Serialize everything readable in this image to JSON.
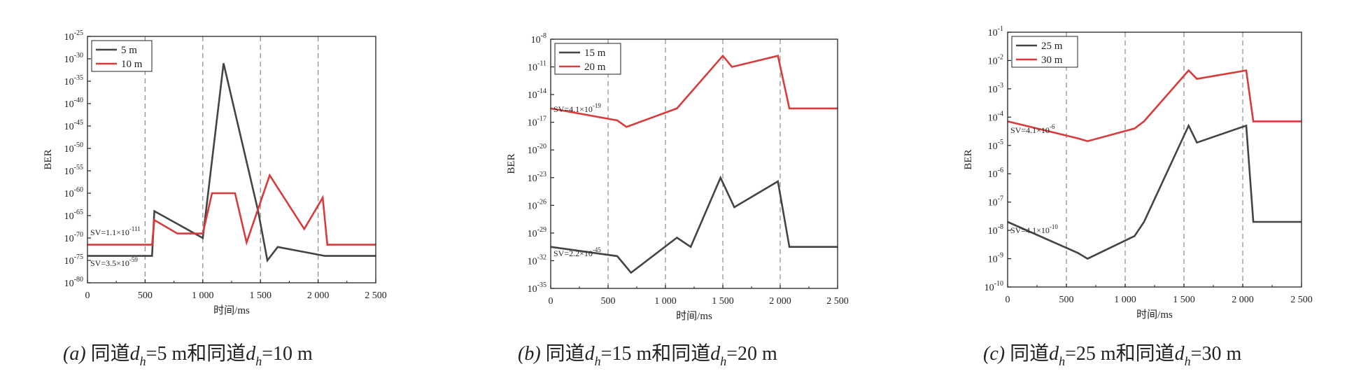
{
  "colors": {
    "black_series": "#444444",
    "red_series": "#d93a3a",
    "vline": "#888888"
  },
  "chart_data": [
    {
      "type": "line",
      "xlabel": "时间/ms",
      "ylabel": "BER",
      "xlim": [
        0,
        2500
      ],
      "x_ticks": [
        "0",
        "500",
        "1 000",
        "1 500",
        "2 000",
        "2 500"
      ],
      "y_log": true,
      "ylim_exp": [
        -80,
        -25
      ],
      "y_tick_exps": [
        "-25",
        "-30",
        "-35",
        "-40",
        "-45",
        "-50",
        "-55",
        "-60",
        "-65",
        "-70",
        "-75",
        "-80"
      ],
      "vlines": [
        500,
        1000,
        1500,
        2000
      ],
      "legend_placement": "top-left",
      "series": [
        {
          "name": "5 m",
          "color": "#444444",
          "x": [
            0,
            560,
            580,
            1000,
            1180,
            1480,
            1560,
            1650,
            2060,
            2500
          ],
          "y_exp": [
            -74,
            -74,
            -64,
            -70,
            -31,
            -64,
            -75,
            -72,
            -74,
            -74
          ]
        },
        {
          "name": "10 m",
          "color": "#d93a3a",
          "x": [
            0,
            560,
            580,
            780,
            1000,
            1080,
            1280,
            1380,
            1580,
            1880,
            2040,
            2080,
            2500
          ],
          "y_exp": [
            -71.5,
            -71.5,
            -66,
            -69,
            -69,
            -60,
            -60,
            -71,
            -56,
            -68,
            -61,
            -71.5,
            -71.5
          ]
        }
      ],
      "annotations": [
        {
          "base": "SV=1.1×10",
          "exp": "-111"
        },
        {
          "base": "SV=3.5×10",
          "exp": "-59"
        }
      ],
      "caption": {
        "letter": "(a)",
        "text1": "同道",
        "sym1": "d",
        "sub1": "h",
        "text2": "=5 m和同道",
        "sym2": "d",
        "sub2": "h",
        "text3": "=10 m"
      }
    },
    {
      "type": "line",
      "xlabel": "时间/ms",
      "ylabel": "BER",
      "xlim": [
        0,
        2500
      ],
      "x_ticks": [
        "0",
        "500",
        "1 000",
        "1 500",
        "2 000",
        "2 500"
      ],
      "y_log": true,
      "ylim_exp": [
        -35,
        -8
      ],
      "y_tick_exps": [
        "-8",
        "-11",
        "-14",
        "-17",
        "-20",
        "-23",
        "-26",
        "-29",
        "-32",
        "-35"
      ],
      "vlines": [
        500,
        1000,
        1500,
        2000
      ],
      "legend_placement": "top-left",
      "series": [
        {
          "name": "15 m",
          "color": "#444444",
          "x": [
            0,
            580,
            700,
            1100,
            1220,
            1480,
            1600,
            1980,
            2080,
            2500
          ],
          "y_exp": [
            -30.5,
            -31.5,
            -33.3,
            -29.5,
            -30.5,
            -23,
            -26.2,
            -23.4,
            -30.5,
            -30.5
          ]
        },
        {
          "name": "20 m",
          "color": "#d93a3a",
          "x": [
            0,
            580,
            660,
            1100,
            1500,
            1580,
            1980,
            2080,
            2500
          ],
          "y_exp": [
            -15.5,
            -16.8,
            -17.5,
            -15.5,
            -9.8,
            -11,
            -9.8,
            -15.5,
            -15.5
          ]
        }
      ],
      "annotations": [
        {
          "base": "SV=4.1×10",
          "exp": "-19"
        },
        {
          "base": "SV=2.2×10",
          "exp": "-45"
        }
      ],
      "caption": {
        "letter": "(b)",
        "text1": "同道",
        "sym1": "d",
        "sub1": "h",
        "text2": "=15 m和同道",
        "sym2": "d",
        "sub2": "h",
        "text3": "=20 m"
      }
    },
    {
      "type": "line",
      "xlabel": "时间/ms",
      "ylabel": "BER",
      "xlim": [
        0,
        2500
      ],
      "x_ticks": [
        "0",
        "500",
        "1 000",
        "1 500",
        "2 000",
        "2 500"
      ],
      "y_log": true,
      "ylim_exp": [
        -10,
        -1
      ],
      "y_tick_exps": [
        "-1",
        "-2",
        "-3",
        "-4",
        "-5",
        "-6",
        "-7",
        "-8",
        "-9",
        "-10"
      ],
      "vlines": [
        500,
        1000,
        1500,
        2000
      ],
      "legend_placement": "top-left",
      "series": [
        {
          "name": "25 m",
          "color": "#444444",
          "x": [
            0,
            600,
            680,
            1080,
            1160,
            1540,
            1610,
            2030,
            2090,
            2500
          ],
          "y_exp": [
            -7.7,
            -8.8,
            -9,
            -8.2,
            -7.7,
            -4.3,
            -4.9,
            -4.3,
            -7.7,
            -7.7
          ]
        },
        {
          "name": "30 m",
          "color": "#d93a3a",
          "x": [
            0,
            600,
            680,
            1080,
            1160,
            1540,
            1610,
            2030,
            2090,
            2500
          ],
          "y_exp": [
            -4.15,
            -4.75,
            -4.85,
            -4.4,
            -4.15,
            -2.35,
            -2.65,
            -2.35,
            -4.15,
            -4.15
          ]
        }
      ],
      "annotations": [
        {
          "base": "SV=4.1×10",
          "exp": "-6"
        },
        {
          "base": "SV=4.1×10",
          "exp": "-10"
        }
      ],
      "caption": {
        "letter": "(c)",
        "text1": "同道",
        "sym1": "d",
        "sub1": "h",
        "text2": "=25 m和同道",
        "sym2": "d",
        "sub2": "h",
        "text3": "=30 m"
      }
    }
  ]
}
